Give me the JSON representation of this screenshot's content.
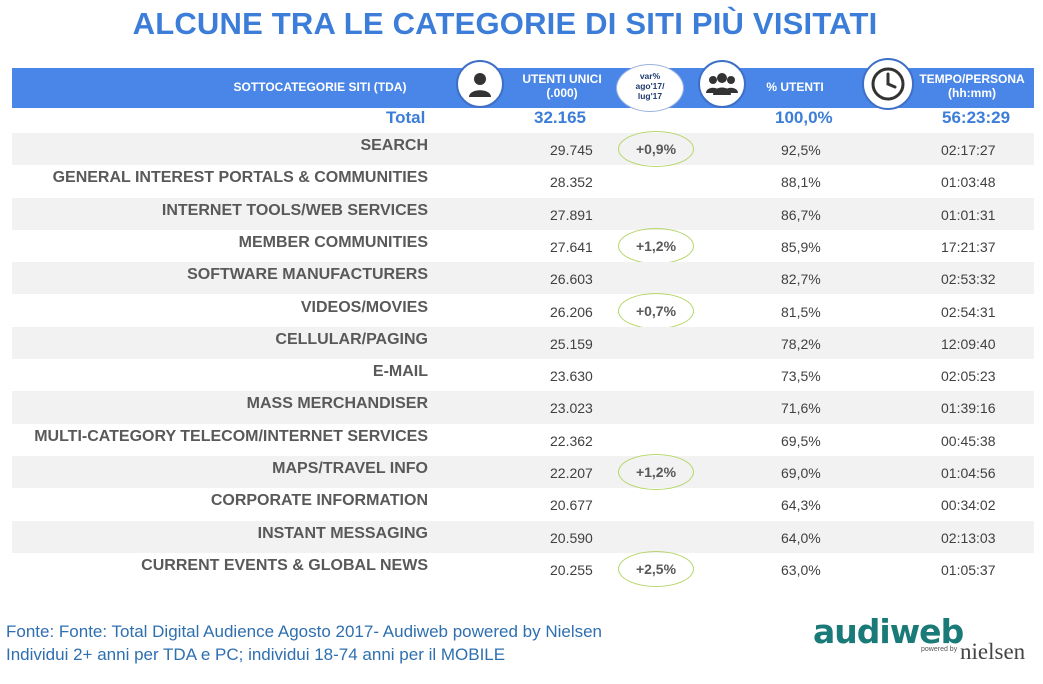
{
  "title": "ALCUNE TRA LE CATEGORIE DI SITI PIÙ VISITATI",
  "header": {
    "col_category": "SOTTOCATEGORIE SITI  (TDA)",
    "col_users_l1": "UTENTI UNICI",
    "col_users_l2": "(.000)",
    "col_var_l1": "var%",
    "col_var_l2": "ago'17/",
    "col_var_l3": "lug'17",
    "col_pct": "% UTENTI",
    "col_time_l1": "TEMPO/PERSONA",
    "col_time_l2": "(hh:mm)"
  },
  "icons": [
    "user-icon",
    "group-icon",
    "clock-icon"
  ],
  "total": {
    "label": "Total",
    "users": "32.165",
    "pct": "100,0%",
    "time": "56:23:29"
  },
  "rows": [
    {
      "category": "SEARCH",
      "users": "29.745",
      "var": "+0,9%",
      "pct": "92,5%",
      "time": "02:17:27"
    },
    {
      "category": "GENERAL INTEREST PORTALS & COMMUNITIES",
      "users": "28.352",
      "var": "",
      "pct": "88,1%",
      "time": "01:03:48"
    },
    {
      "category": "INTERNET TOOLS/WEB SERVICES",
      "users": "27.891",
      "var": "",
      "pct": "86,7%",
      "time": "01:01:31"
    },
    {
      "category": "MEMBER COMMUNITIES",
      "users": "27.641",
      "var": "+1,2%",
      "pct": "85,9%",
      "time": "17:21:37"
    },
    {
      "category": "SOFTWARE MANUFACTURERS",
      "users": "26.603",
      "var": "",
      "pct": "82,7%",
      "time": "02:53:32"
    },
    {
      "category": "VIDEOS/MOVIES",
      "users": "26.206",
      "var": "+0,7%",
      "pct": "81,5%",
      "time": "02:54:31"
    },
    {
      "category": "CELLULAR/PAGING",
      "users": "25.159",
      "var": "",
      "pct": "78,2%",
      "time": "12:09:40"
    },
    {
      "category": "E-MAIL",
      "users": "23.630",
      "var": "",
      "pct": "73,5%",
      "time": "02:05:23"
    },
    {
      "category": "MASS MERCHANDISER",
      "users": "23.023",
      "var": "",
      "pct": "71,6%",
      "time": "01:39:16"
    },
    {
      "category": "MULTI-CATEGORY TELECOM/INTERNET SERVICES",
      "users": "22.362",
      "var": "",
      "pct": "69,5%",
      "time": "00:45:38"
    },
    {
      "category": "MAPS/TRAVEL INFO",
      "users": "22.207",
      "var": "+1,2%",
      "pct": "69,0%",
      "time": "01:04:56"
    },
    {
      "category": "CORPORATE INFORMATION",
      "users": "20.677",
      "var": "",
      "pct": "64,3%",
      "time": "00:34:02"
    },
    {
      "category": "INSTANT MESSAGING",
      "users": "20.590",
      "var": "",
      "pct": "64,0%",
      "time": "02:13:03"
    },
    {
      "category": "CURRENT EVENTS & GLOBAL NEWS",
      "users": "20.255",
      "var": "+2,5%",
      "pct": "63,0%",
      "time": "01:05:37"
    }
  ],
  "footer": {
    "line1": "Fonte: Fonte: Total Digital Audience Agosto 2017- Audiweb powered by Nielsen",
    "line2": "Individui 2+ anni per TDA e PC; individui 18-74 anni per il MOBILE"
  },
  "logo": {
    "audiweb": "audiweb",
    "powered": "powered by",
    "nielsen": "nielsen"
  },
  "colors": {
    "title": "#3b7dd8",
    "header_bar": "#4a86e8",
    "row_shade": "#f2f2f2",
    "pill_border": "#b6d66a",
    "footer_text": "#2e6fb0",
    "logo": "#1a7a78"
  }
}
